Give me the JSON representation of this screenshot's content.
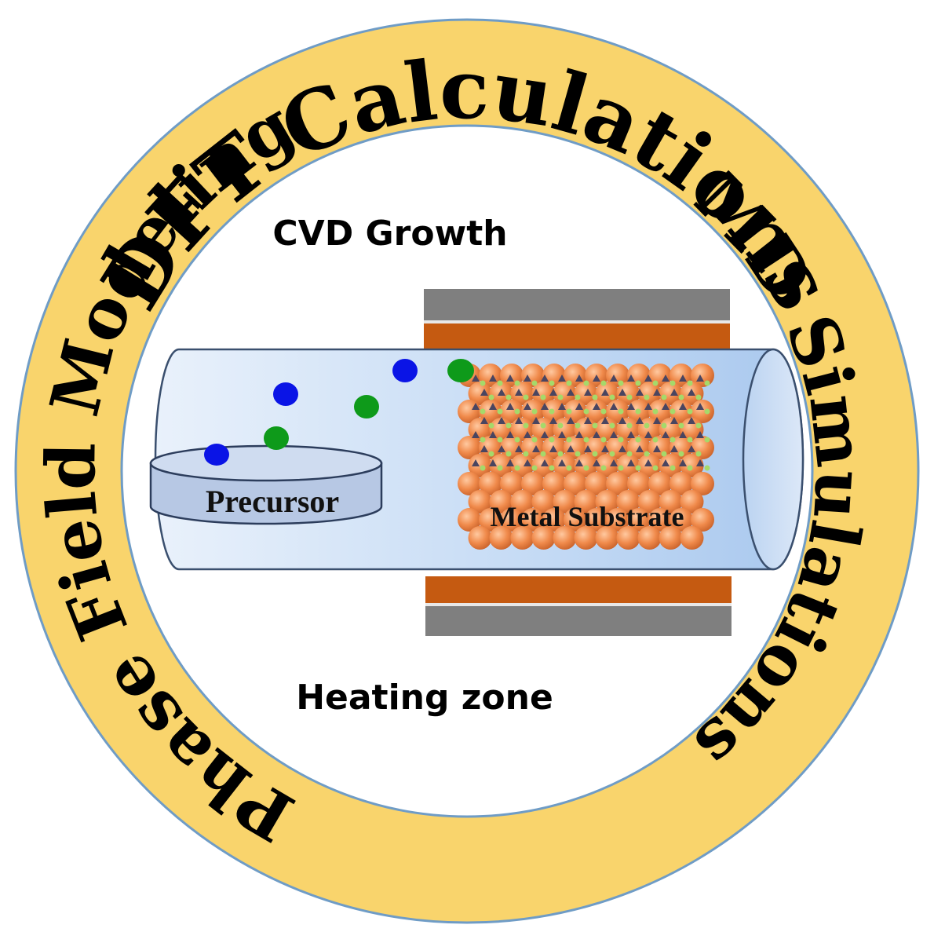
{
  "ring": {
    "top_label": "DFT Calculations",
    "right_label": "MD Simulations",
    "left_label": "Phase Field Modeling",
    "fill_color": "#F9D46C",
    "border_color": "#6F9CC6"
  },
  "center": {
    "title": "CVD Growth",
    "bottom_label": "Heating zone",
    "precursor_label": "Precursor",
    "substrate_label": "Metal Substrate"
  },
  "colors": {
    "tube": "#C9DDF6",
    "heater_gray": "#7F7F7F",
    "heater_orange": "#C55A11",
    "substrate_atom": "#F08A4B",
    "adatom_green": "#A6D96A",
    "adatom_dark": "#4A4560",
    "particle_blue": "#0A14E6",
    "particle_green": "#0E9A1A"
  }
}
